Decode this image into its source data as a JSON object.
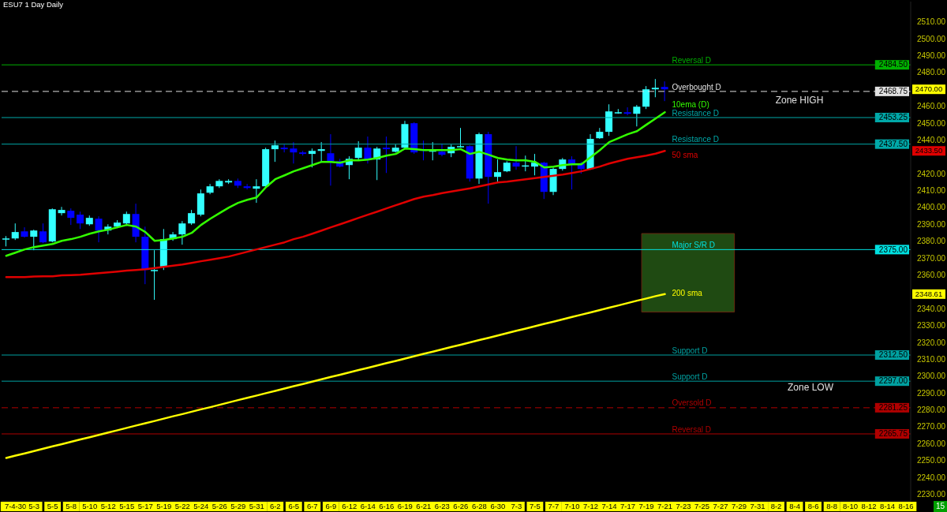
{
  "chart_data": {
    "type": "candlestick",
    "title": "ESU7 1 Day  Daily",
    "categories": [
      null,
      "7-4-30",
      null,
      "5-3",
      null,
      "5-5",
      null,
      "5-8",
      null,
      "5-10",
      null,
      "5-12",
      null,
      "5-15",
      null,
      "5-17",
      null,
      "5-19",
      null,
      "5-22",
      null,
      "5-24",
      null,
      "5-26",
      null,
      "5-29",
      null,
      "5-31",
      null,
      "6-2",
      null,
      "6-5",
      null,
      "6-7",
      null,
      "6-9",
      null,
      "6-12",
      null,
      "6-14",
      null,
      "6-16",
      null,
      "6-19",
      null,
      "6-21",
      null,
      "6-23",
      null,
      "6-26",
      null,
      "6-28",
      null,
      "6-30",
      null,
      "7-3",
      null,
      "7-5",
      null,
      "7-7",
      null,
      "7-10",
      null,
      "7-12",
      null,
      "7-14",
      null,
      "7-17",
      null,
      "7-19",
      null,
      "7-21",
      null,
      "7-23",
      null,
      "7-25",
      null,
      "7-27",
      null,
      "7-29",
      null,
      "7-31",
      null,
      "8-2",
      null,
      "8-4",
      null,
      "8-6",
      null,
      "8-8",
      null,
      "8-10",
      null,
      "8-12",
      null,
      "8-14",
      null,
      "8-16"
    ],
    "ohlc": [
      [
        2381.4,
        2383.0,
        2376.9,
        2381.6
      ],
      [
        2381.6,
        2390.5,
        2380.7,
        2385.4
      ],
      [
        2385.8,
        2388.2,
        2382.1,
        2382.6
      ],
      [
        2382.6,
        2386.8,
        2374.6,
        2386.3
      ],
      [
        2385.8,
        2390.5,
        2378.8,
        2379.3
      ],
      [
        2379.8,
        2399.4,
        2379.3,
        2398.9
      ],
      [
        2396.6,
        2400.3,
        2395.2,
        2398.5
      ],
      [
        2398.0,
        2399.4,
        2389.6,
        2393.8
      ],
      [
        2395.7,
        2397.5,
        2387.2,
        2390.5
      ],
      [
        2390.0,
        2395.2,
        2389.1,
        2393.8
      ],
      [
        2393.3,
        2394.7,
        2379.3,
        2386.3
      ],
      [
        2386.3,
        2390.0,
        2384.0,
        2388.6
      ],
      [
        2388.6,
        2392.4,
        2387.7,
        2391.0
      ],
      [
        2390.5,
        2397.5,
        2389.1,
        2396.1
      ],
      [
        2396.1,
        2402.2,
        2379.3,
        2382.6
      ],
      [
        2382.6,
        2388.6,
        2354.5,
        2362.9
      ],
      [
        2362.7,
        2374.6,
        2345.2,
        2362.9
      ],
      [
        2364.8,
        2387.2,
        2362.9,
        2381.2
      ],
      [
        2381.2,
        2385.4,
        2380.2,
        2384.0
      ],
      [
        2384.0,
        2391.9,
        2377.9,
        2390.5
      ],
      [
        2390.5,
        2398.5,
        2389.6,
        2396.6
      ],
      [
        2395.7,
        2410.6,
        2394.7,
        2408.3
      ],
      [
        2408.7,
        2413.9,
        2407.8,
        2412.5
      ],
      [
        2412.5,
        2416.7,
        2411.5,
        2415.7
      ],
      [
        2414.8,
        2416.7,
        2413.9,
        2415.7
      ],
      [
        2415.7,
        2417.1,
        2411.5,
        2412.9
      ],
      [
        2412.5,
        2413.9,
        2410.6,
        2411.5
      ],
      [
        2411.1,
        2416.7,
        2402.7,
        2412.5
      ],
      [
        2412.5,
        2435.4,
        2411.5,
        2434.5
      ],
      [
        2434.5,
        2439.6,
        2427.0,
        2436.8
      ],
      [
        2435.4,
        2437.3,
        2432.6,
        2434.5
      ],
      [
        2434.9,
        2438.7,
        2426.0,
        2432.6
      ],
      [
        2432.6,
        2433.5,
        2430.7,
        2431.7
      ],
      [
        2431.7,
        2434.9,
        2423.7,
        2433.5
      ],
      [
        2433.5,
        2438.7,
        2427.0,
        2434.5
      ],
      [
        2432.1,
        2443.4,
        2412.9,
        2427.4
      ],
      [
        2427.4,
        2428.8,
        2423.7,
        2424.2
      ],
      [
        2425.1,
        2430.3,
        2416.7,
        2428.8
      ],
      [
        2429.3,
        2439.2,
        2427.9,
        2435.4
      ],
      [
        2435.4,
        2442.0,
        2426.0,
        2428.4
      ],
      [
        2428.4,
        2435.9,
        2416.2,
        2434.9
      ],
      [
        2435.4,
        2442.0,
        2420.4,
        2434.5
      ],
      [
        2433.0,
        2437.3,
        2432.6,
        2435.4
      ],
      [
        2435.4,
        2451.3,
        2434.9,
        2449.4
      ],
      [
        2449.9,
        2450.5,
        2431.7,
        2432.6
      ],
      [
        2434.5,
        2439.6,
        2427.9,
        2433.5
      ],
      [
        2433.0,
        2438.7,
        2427.9,
        2434.5
      ],
      [
        2433.0,
        2437.8,
        2430.3,
        2431.2
      ],
      [
        2432.1,
        2437.3,
        2429.8,
        2435.9
      ],
      [
        2436.1,
        2447.1,
        2435.4,
        2436.3
      ],
      [
        2436.3,
        2436.8,
        2415.3,
        2417.1
      ],
      [
        2417.1,
        2444.3,
        2413.9,
        2443.4
      ],
      [
        2443.4,
        2444.8,
        2402.2,
        2418.1
      ],
      [
        2418.1,
        2428.4,
        2415.3,
        2420.9
      ],
      [
        2421.4,
        2427.4,
        2420.9,
        2426.5
      ],
      [
        2426.5,
        2436.3,
        2422.3,
        2424.2
      ],
      [
        2424.6,
        2430.7,
        2421.4,
        2424.9
      ],
      [
        2424.2,
        2431.7,
        2419.0,
        2426.5
      ],
      [
        2426.5,
        2427.0,
        2405.0,
        2409.2
      ],
      [
        2409.2,
        2423.7,
        2407.3,
        2422.8
      ],
      [
        2422.8,
        2429.3,
        2421.8,
        2428.4
      ],
      [
        2428.4,
        2430.3,
        2410.6,
        2425.6
      ],
      [
        2426.0,
        2427.0,
        2420.0,
        2422.8
      ],
      [
        2422.8,
        2443.4,
        2422.3,
        2440.6
      ],
      [
        2441.0,
        2447.1,
        2440.6,
        2444.8
      ],
      [
        2444.8,
        2461.1,
        2442.4,
        2456.9
      ],
      [
        2456.2,
        2458.3,
        2455.5,
        2456.4
      ],
      [
        2456.4,
        2459.3,
        2454.6,
        2455.5
      ],
      [
        2455.5,
        2460.7,
        2448.0,
        2459.7
      ],
      [
        2459.7,
        2471.9,
        2458.3,
        2470.0
      ],
      [
        2470.0,
        2476.1,
        2465.3,
        2470.9
      ],
      [
        2471.4,
        2474.7,
        2463.0,
        2470.0
      ],
      null,
      null,
      null,
      null,
      null,
      null,
      null,
      null,
      null,
      null,
      null,
      null,
      null,
      null,
      null,
      null,
      null,
      null,
      null,
      null,
      null,
      null,
      null,
      null,
      null,
      null
    ],
    "colors": [
      "#33ffff",
      "#33ffff",
      "#0000ff",
      "#33ffff",
      "#0000ff",
      "#33ffff",
      "#33ffff",
      "#0000ff",
      "#0000ff",
      "#33ffff",
      "#0000ff",
      "#33ffff",
      "#33ffff",
      "#33ffff",
      "#0000ff",
      "#0000ff",
      "#33ffff",
      "#33ffff",
      "#33ffff",
      "#33ffff",
      "#33ffff",
      "#33ffff",
      "#33ffff",
      "#33ffff",
      "#33ffff",
      "#0000ff",
      "#0000ff",
      "#33ffff",
      "#33ffff",
      "#33ffff",
      "#0000ff",
      "#0000ff",
      "#0000ff",
      "#33ffff",
      "#33ffff",
      "#0000ff",
      "#0000ff",
      "#33ffff",
      "#33ffff",
      "#0000ff",
      "#33ffff",
      "#0000ff",
      "#33ffff",
      "#33ffff",
      "#0000ff",
      "#0000ff",
      "#33ffff",
      "#0000ff",
      "#33ffff",
      "#33ffff",
      "#0000ff",
      "#33ffff",
      "#0000ff",
      "#33ffff",
      "#33ffff",
      "#0000ff",
      "#33ffff",
      "#33ffff",
      "#0000ff",
      "#33ffff",
      "#33ffff",
      "#0000ff",
      "#0000ff",
      "#33ffff",
      "#33ffff",
      "#33ffff",
      "#33ffff",
      "#0000ff",
      "#33ffff",
      "#33ffff",
      "#33ffff",
      "#0000ff",
      null,
      null,
      null,
      null,
      null,
      null,
      null,
      null,
      null,
      null,
      null,
      null,
      null,
      null,
      null,
      null,
      null,
      null,
      null,
      null,
      null,
      null,
      null,
      null,
      null,
      null
    ],
    "series": [
      {
        "type": "line",
        "name": "10ema (D)",
        "color": "#33ff00",
        "values": [
          2371.3,
          2373.2,
          2375.1,
          2376.5,
          2377.4,
          2378.3,
          2380.2,
          2381.2,
          2382.6,
          2384.4,
          2385.8,
          2386.8,
          2388.2,
          2389.6,
          2388.6,
          2385.4,
          2380.2,
          2380.7,
          2381.6,
          2382.6,
          2384.9,
          2389.6,
          2393.3,
          2396.6,
          2399.9,
          2402.7,
          2404.5,
          2405.9,
          2412.0,
          2416.7,
          2419.0,
          2421.4,
          2423.2,
          2425.1,
          2427.0,
          2427.0,
          2426.5,
          2427.9,
          2427.9,
          2428.4,
          2429.3,
          2430.7,
          2431.7,
          2434.9,
          2434.5,
          2434.0,
          2434.0,
          2434.0,
          2434.0,
          2434.5,
          2431.7,
          2433.0,
          2431.2,
          2429.3,
          2428.4,
          2427.9,
          2427.9,
          2427.0,
          2423.7,
          2424.2,
          2425.1,
          2425.6,
          2425.6,
          2429.8,
          2434.0,
          2438.7,
          2441.0,
          2443.4,
          2445.2,
          2449.0,
          2452.7,
          2456.4,
          null,
          null,
          null,
          null,
          null,
          null,
          null,
          null,
          null,
          null,
          null,
          null,
          null,
          null,
          null,
          null,
          null,
          null,
          null,
          null,
          null,
          null,
          null,
          null,
          null,
          null
        ]
      },
      {
        "type": "line",
        "name": "50 sma",
        "color": "#e00000",
        "values": [
          2358.7,
          2358.7,
          2358.7,
          2359.0,
          2359.2,
          2359.2,
          2359.7,
          2359.9,
          2360.1,
          2360.6,
          2361.0,
          2361.5,
          2362.0,
          2362.5,
          2362.9,
          2363.4,
          2364.1,
          2364.8,
          2365.5,
          2366.2,
          2367.1,
          2368.1,
          2369.0,
          2369.9,
          2370.9,
          2372.3,
          2373.7,
          2375.1,
          2376.5,
          2377.9,
          2379.3,
          2381.2,
          2382.6,
          2384.4,
          2386.3,
          2388.2,
          2390.0,
          2391.9,
          2393.8,
          2395.7,
          2397.5,
          2399.4,
          2401.3,
          2403.1,
          2405.0,
          2406.4,
          2407.3,
          2408.5,
          2409.4,
          2410.4,
          2411.3,
          2412.5,
          2413.6,
          2414.8,
          2415.3,
          2416.0,
          2416.7,
          2417.4,
          2418.1,
          2418.8,
          2419.5,
          2420.4,
          2421.4,
          2422.8,
          2424.2,
          2426.0,
          2427.4,
          2428.8,
          2429.8,
          2430.7,
          2431.9,
          2433.5,
          null,
          null,
          null,
          null,
          null,
          null,
          null,
          null,
          null,
          null,
          null,
          null,
          null,
          null,
          null,
          null,
          null,
          null,
          null,
          null,
          null,
          null,
          null,
          null,
          null,
          null
        ]
      },
      {
        "type": "line",
        "name": "200 sma",
        "color": "#ffff00",
        "values": [
          2251.5,
          2252.9,
          2254.2,
          2255.6,
          2257.0,
          2258.4,
          2259.7,
          2261.1,
          2262.5,
          2263.8,
          2265.2,
          2266.6,
          2267.9,
          2269.3,
          2270.7,
          2272.1,
          2273.4,
          2274.8,
          2276.2,
          2277.5,
          2278.9,
          2280.3,
          2281.6,
          2283.0,
          2284.4,
          2285.8,
          2287.1,
          2288.5,
          2289.9,
          2291.2,
          2292.6,
          2294.0,
          2295.3,
          2296.7,
          2298.1,
          2299.5,
          2300.8,
          2302.2,
          2303.6,
          2304.9,
          2306.3,
          2307.7,
          2309.0,
          2310.4,
          2311.8,
          2313.2,
          2314.5,
          2315.9,
          2317.3,
          2318.6,
          2320.0,
          2321.4,
          2322.7,
          2324.1,
          2325.5,
          2326.9,
          2328.2,
          2329.6,
          2331.0,
          2332.3,
          2333.7,
          2335.1,
          2336.4,
          2337.8,
          2339.2,
          2340.6,
          2341.9,
          2343.3,
          2344.7,
          2346.0,
          2347.4,
          2348.61,
          null,
          null,
          null,
          null,
          null,
          null,
          null,
          null,
          null,
          null,
          null,
          null,
          null,
          null,
          null,
          null,
          null,
          null,
          null,
          null,
          null,
          null,
          null,
          null,
          null,
          null
        ]
      }
    ],
    "ylim": [
      2226,
      2522
    ],
    "yticks": [
      {
        "value": 2230,
        "label": "2230.00"
      },
      {
        "value": 2240,
        "label": "2240.00"
      },
      {
        "value": 2250,
        "label": "2250.00"
      },
      {
        "value": 2260,
        "label": "2260.00"
      },
      {
        "value": 2270,
        "label": "2270.00"
      },
      {
        "value": 2280,
        "label": "2280.00"
      },
      {
        "value": 2290,
        "label": "2290.00"
      },
      {
        "value": 2300,
        "label": "2300.00"
      },
      {
        "value": 2310,
        "label": "2310.00"
      },
      {
        "value": 2320,
        "label": "2320.00"
      },
      {
        "value": 2330,
        "label": "2330.00"
      },
      {
        "value": 2340,
        "label": "2340.00"
      },
      {
        "value": 2360,
        "label": "2360.00"
      },
      {
        "value": 2370,
        "label": "2370.00"
      },
      {
        "value": 2380,
        "label": "2380.00"
      },
      {
        "value": 2390,
        "label": "2390.00"
      },
      {
        "value": 2400,
        "label": "2400.00"
      },
      {
        "value": 2410,
        "label": "2410.00"
      },
      {
        "value": 2420,
        "label": "2420.00"
      },
      {
        "value": 2440,
        "label": "2440.00"
      },
      {
        "value": 2450,
        "label": "2450.00"
      },
      {
        "value": 2460,
        "label": "2460.00"
      },
      {
        "value": 2480,
        "label": "2480.00"
      },
      {
        "value": 2490,
        "label": "2490.00"
      },
      {
        "value": 2500,
        "label": "2500.00"
      },
      {
        "value": 2510,
        "label": "2510.00"
      }
    ],
    "ref_lines": [
      {
        "axis": "y",
        "value": 2484.5,
        "label": "Reversal D",
        "color": "#00b000"
      },
      {
        "axis": "y",
        "value": 2468.75,
        "label": "Overbought D",
        "color": "#e0e0e0",
        "line_style": "dashed"
      },
      {
        "axis": "y",
        "value": 2453.25,
        "label": "Resistance D",
        "color": "#00a8a8"
      },
      {
        "axis": "y",
        "value": 2437.5,
        "label": "Resistance D",
        "color": "#00a8a8"
      },
      {
        "axis": "y",
        "value": 2375,
        "label": "Major S/R D",
        "color": "#00e0e0"
      },
      {
        "axis": "y",
        "value": 2312.5,
        "label": "Support D",
        "color": "#00a0a0"
      },
      {
        "axis": "y",
        "value": 2297,
        "label": "Support D",
        "color": "#00a0a0"
      },
      {
        "axis": "y",
        "value": 2281.25,
        "label": "Oversold D",
        "color": "#b00000",
        "line_style": "dashed"
      },
      {
        "axis": "y",
        "value": 2265.75,
        "label": "Reversal D",
        "color": "#b00000"
      }
    ],
    "bands": [
      {
        "axis": "y",
        "from": 2338,
        "to": 2384.5,
        "color": "#1f4a12"
      }
    ],
    "annotations": [
      "Zone HIGH",
      "Zone LOW",
      "15",
      {
        "text": "2484.50",
        "y": 2484.5
      },
      {
        "text": "2468.75",
        "y": 2468.75
      },
      {
        "text": "2453.25",
        "y": 2453.25
      },
      {
        "text": "2437.50",
        "y": 2437.5
      },
      {
        "text": "2375.00",
        "y": 2375
      },
      {
        "text": "2312.50",
        "y": 2312.5
      },
      {
        "text": "2297.00",
        "y": 2297
      },
      {
        "text": "2281.25",
        "y": 2281.25
      },
      {
        "text": "2265.75",
        "y": 2265.75
      },
      "2470.00",
      "2433.50",
      "2348.61"
    ]
  }
}
